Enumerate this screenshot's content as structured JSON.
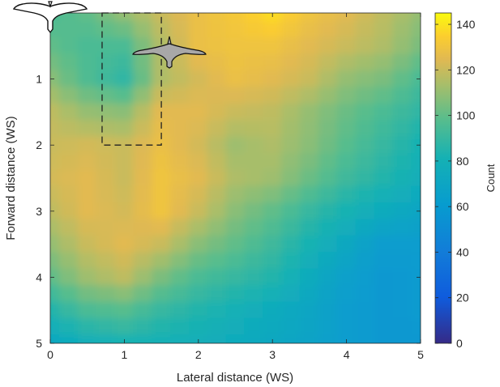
{
  "chart_data": {
    "type": "heatmap",
    "title": "",
    "xlabel": "Lateral distance (WS)",
    "ylabel": "Forward distance (WS)",
    "xlim": [
      0,
      5
    ],
    "ylim": [
      0,
      5
    ],
    "y_reversed": true,
    "x_ticks": [
      "0",
      "1",
      "2",
      "3",
      "4",
      "5"
    ],
    "y_ticks": [
      "1",
      "2",
      "3",
      "4",
      "5"
    ],
    "colorbar": {
      "label": "Count",
      "range": [
        0,
        145
      ],
      "ticks": [
        "0",
        "20",
        "40",
        "60",
        "80",
        "100",
        "120",
        "140"
      ],
      "colormap": "parula"
    },
    "grid_step": 0.5,
    "x_centers": [
      0,
      0.5,
      1,
      1.5,
      2,
      2.5,
      3,
      3.5,
      4,
      4.5,
      5
    ],
    "y_centers": [
      0,
      0.5,
      1,
      1.5,
      2,
      2.5,
      3,
      3.5,
      4,
      4.5,
      5
    ],
    "values": [
      [
        95,
        100,
        110,
        120,
        128,
        132,
        138,
        130,
        125,
        118,
        110
      ],
      [
        100,
        95,
        95,
        115,
        128,
        130,
        130,
        125,
        120,
        115,
        105
      ],
      [
        108,
        96,
        88,
        115,
        122,
        128,
        125,
        120,
        110,
        105,
        95
      ],
      [
        118,
        110,
        108,
        125,
        125,
        120,
        118,
        110,
        102,
        95,
        88
      ],
      [
        120,
        122,
        120,
        128,
        122,
        112,
        115,
        108,
        98,
        90,
        82
      ],
      [
        122,
        125,
        120,
        130,
        125,
        115,
        112,
        102,
        92,
        85,
        78
      ],
      [
        118,
        125,
        122,
        130,
        120,
        108,
        100,
        90,
        82,
        75,
        70
      ],
      [
        110,
        120,
        125,
        120,
        108,
        100,
        92,
        82,
        72,
        62,
        62
      ],
      [
        100,
        112,
        118,
        105,
        95,
        90,
        85,
        75,
        65,
        58,
        60
      ],
      [
        85,
        95,
        98,
        90,
        85,
        80,
        75,
        70,
        62,
        58,
        60
      ],
      [
        72,
        78,
        82,
        80,
        78,
        75,
        72,
        68,
        62,
        58,
        58
      ]
    ],
    "annotations": [
      {
        "type": "dashed-rectangle",
        "x_range": [
          0.7,
          1.5
        ],
        "y_range": [
          0,
          2
        ]
      },
      {
        "type": "bird-silhouette-outline",
        "x": 0,
        "y": 0
      },
      {
        "type": "bird-silhouette-filled",
        "x": 1.6,
        "y": 0.55
      }
    ]
  }
}
